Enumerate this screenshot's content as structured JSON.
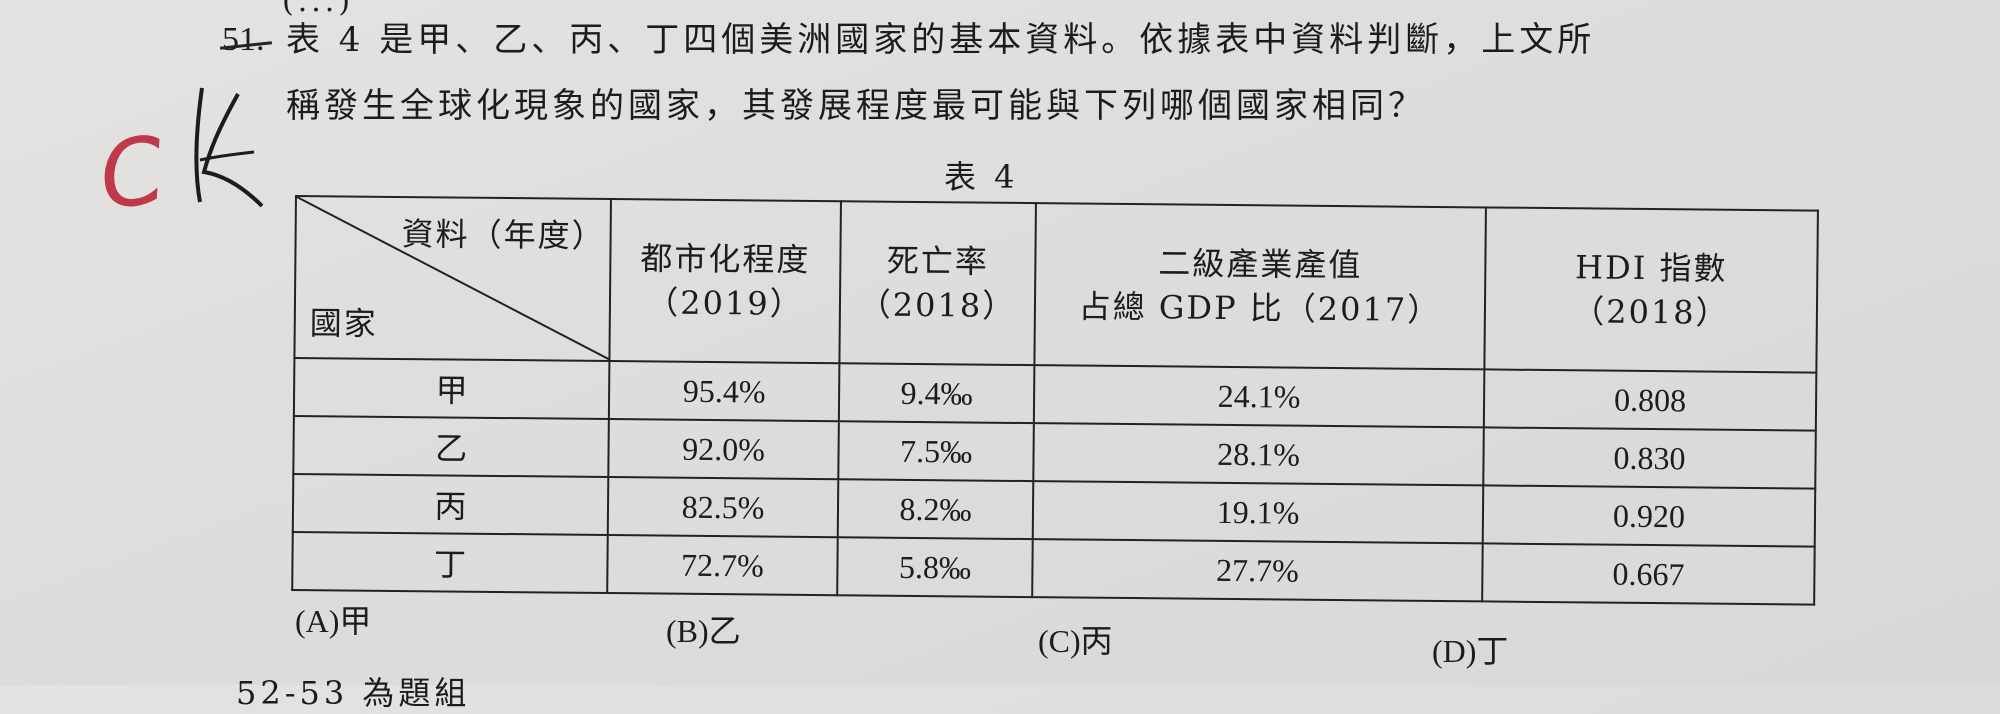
{
  "prev_line_fragment": "(...)",
  "question": {
    "number": "51.",
    "line1": "表 4 是甲、乙、丙、丁四個美洲國家的基本資料。依據表中資料判斷，上文所",
    "line2": "稱發生全球化現象的國家，其發展程度最可能與下列哪個國家相同？"
  },
  "handwriting": {
    "mark_c": "C",
    "mark_a": "A",
    "color": "#c0394b"
  },
  "table": {
    "caption": "表 4",
    "corner_top": "資料（年度）",
    "corner_bottom": "國家",
    "columns": [
      {
        "l1": "都市化程度",
        "l2": "（2019）"
      },
      {
        "l1": "死亡率",
        "l2": "（2018）"
      },
      {
        "l1": "二級產業產值",
        "l2": "占總 GDP 比（2017）"
      },
      {
        "l1": "HDI 指數",
        "l2": "（2018）"
      }
    ],
    "rows": [
      {
        "country": "甲",
        "urban": "95.4%",
        "death": "9.4‰",
        "industry": "24.1%",
        "hdi": "0.808"
      },
      {
        "country": "乙",
        "urban": "92.0%",
        "death": "7.5‰",
        "industry": "28.1%",
        "hdi": "0.830"
      },
      {
        "country": "丙",
        "urban": "82.5%",
        "death": "8.2‰",
        "industry": "19.1%",
        "hdi": "0.920"
      },
      {
        "country": "丁",
        "urban": "72.7%",
        "death": "5.8‰",
        "industry": "27.7%",
        "hdi": "0.667"
      }
    ]
  },
  "options": [
    {
      "label": "(A)",
      "value": "甲"
    },
    {
      "label": "(B)",
      "value": "乙"
    },
    {
      "label": "(C)",
      "value": "丙"
    },
    {
      "label": "(D)",
      "value": "丁"
    }
  ],
  "next_group": "52-53 為題組"
}
